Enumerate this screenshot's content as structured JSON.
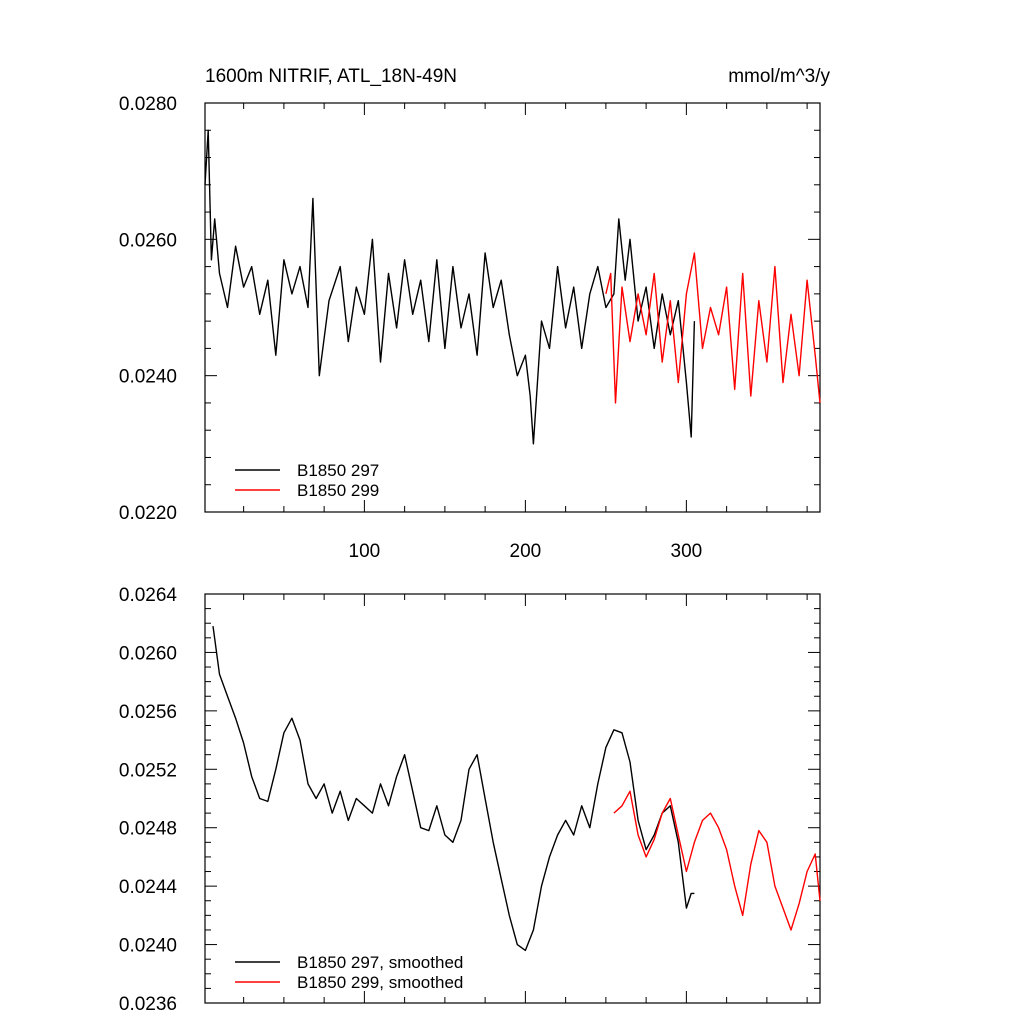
{
  "figure": {
    "left_title": "1600m NITRIF, ATL_18N-49N",
    "right_title": "mmol/m^3/y"
  },
  "chart_data": [
    {
      "type": "line",
      "title": "1600m NITRIF, ATL_18N-49N",
      "units": "mmol/m^3/y",
      "xlim": [
        1,
        383
      ],
      "ylim": [
        0.022,
        0.028
      ],
      "x_ticks": [
        100,
        200,
        300
      ],
      "x_tick_labels": [
        "100",
        "200",
        "300"
      ],
      "y_ticks": [
        0.022,
        0.024,
        0.026,
        0.028
      ],
      "y_tick_labels": [
        "0.0220",
        "0.0240",
        "0.0260",
        "0.0280"
      ],
      "legend_position": "lower-left",
      "series": [
        {
          "name": "B1850 297",
          "color": "#000000",
          "x": [
            1,
            3,
            5,
            7,
            10,
            15,
            20,
            25,
            30,
            35,
            40,
            45,
            50,
            55,
            60,
            65,
            68,
            72,
            78,
            85,
            90,
            95,
            100,
            105,
            110,
            115,
            120,
            125,
            130,
            135,
            140,
            145,
            150,
            155,
            160,
            165,
            170,
            175,
            180,
            185,
            190,
            195,
            200,
            203,
            205,
            210,
            215,
            220,
            225,
            230,
            235,
            240,
            245,
            250,
            255,
            258,
            262,
            265,
            270,
            275,
            280,
            285,
            290,
            295,
            300,
            303,
            305
          ],
          "y": [
            0.0268,
            0.0276,
            0.0257,
            0.0263,
            0.0255,
            0.025,
            0.0259,
            0.0253,
            0.0256,
            0.0249,
            0.0254,
            0.0243,
            0.0257,
            0.0252,
            0.0256,
            0.025,
            0.0266,
            0.024,
            0.0251,
            0.0256,
            0.0245,
            0.0253,
            0.0249,
            0.026,
            0.0242,
            0.0255,
            0.0247,
            0.0257,
            0.0249,
            0.0254,
            0.0245,
            0.0257,
            0.0244,
            0.0256,
            0.0247,
            0.0252,
            0.0243,
            0.0258,
            0.025,
            0.0254,
            0.0246,
            0.024,
            0.0243,
            0.0237,
            0.023,
            0.0248,
            0.0244,
            0.0256,
            0.0247,
            0.0253,
            0.0244,
            0.0252,
            0.0256,
            0.025,
            0.0252,
            0.0263,
            0.0254,
            0.026,
            0.0248,
            0.0253,
            0.0244,
            0.0252,
            0.0246,
            0.0251,
            0.0239,
            0.0231,
            0.0248
          ]
        },
        {
          "name": "B1850 299",
          "color": "#ff0000",
          "x": [
            250,
            253,
            256,
            260,
            265,
            270,
            275,
            280,
            285,
            290,
            295,
            300,
            305,
            310,
            315,
            320,
            325,
            330,
            335,
            340,
            345,
            350,
            355,
            360,
            365,
            370,
            375,
            380,
            383
          ],
          "y": [
            0.0252,
            0.0255,
            0.0236,
            0.0253,
            0.0245,
            0.0252,
            0.0246,
            0.0255,
            0.0242,
            0.0251,
            0.0239,
            0.0252,
            0.0258,
            0.0244,
            0.025,
            0.0246,
            0.0253,
            0.0238,
            0.0255,
            0.0237,
            0.0251,
            0.0242,
            0.0256,
            0.0239,
            0.0249,
            0.024,
            0.0254,
            0.0243,
            0.0236
          ]
        }
      ]
    },
    {
      "type": "line",
      "xlim": [
        1,
        383
      ],
      "ylim": [
        0.0236,
        0.0264
      ],
      "x_ticks": [
        100,
        200,
        300
      ],
      "y_ticks": [
        0.0236,
        0.024,
        0.0244,
        0.0248,
        0.0252,
        0.0256,
        0.026,
        0.0264
      ],
      "y_tick_labels": [
        "0.0236",
        "0.0240",
        "0.0244",
        "0.0248",
        "0.0252",
        "0.0256",
        "0.0260",
        "0.0264"
      ],
      "legend_position": "lower-left",
      "series": [
        {
          "name": "B1850 297, smoothed",
          "color": "#000000",
          "x": [
            6,
            10,
            15,
            20,
            25,
            30,
            35,
            40,
            45,
            50,
            55,
            60,
            65,
            70,
            75,
            80,
            85,
            90,
            95,
            100,
            105,
            110,
            115,
            120,
            125,
            130,
            135,
            140,
            145,
            150,
            155,
            160,
            165,
            170,
            175,
            180,
            185,
            190,
            195,
            200,
            205,
            210,
            215,
            220,
            225,
            230,
            235,
            240,
            245,
            250,
            255,
            260,
            265,
            270,
            275,
            280,
            285,
            290,
            295,
            300,
            303,
            305
          ],
          "y": [
            0.02618,
            0.02585,
            0.0257,
            0.02555,
            0.02538,
            0.02515,
            0.025,
            0.02498,
            0.0252,
            0.02545,
            0.02555,
            0.0254,
            0.0251,
            0.025,
            0.0251,
            0.0249,
            0.02505,
            0.02485,
            0.025,
            0.02495,
            0.0249,
            0.0251,
            0.02495,
            0.02515,
            0.0253,
            0.02505,
            0.0248,
            0.02478,
            0.02495,
            0.02475,
            0.0247,
            0.02485,
            0.0252,
            0.0253,
            0.025,
            0.0247,
            0.02445,
            0.0242,
            0.024,
            0.02396,
            0.0241,
            0.0244,
            0.0246,
            0.02475,
            0.02485,
            0.02475,
            0.02495,
            0.0248,
            0.0251,
            0.02535,
            0.02547,
            0.02545,
            0.02525,
            0.02485,
            0.02465,
            0.02475,
            0.0249,
            0.02495,
            0.0247,
            0.02425,
            0.02435,
            0.02435
          ]
        },
        {
          "name": "B1850 299, smoothed",
          "color": "#ff0000",
          "x": [
            255,
            260,
            265,
            270,
            275,
            280,
            285,
            290,
            295,
            300,
            305,
            310,
            315,
            320,
            325,
            330,
            335,
            340,
            345,
            350,
            355,
            360,
            365,
            370,
            375,
            380,
            383
          ],
          "y": [
            0.0249,
            0.02495,
            0.02505,
            0.02475,
            0.0246,
            0.02472,
            0.0249,
            0.025,
            0.02475,
            0.0245,
            0.0247,
            0.02485,
            0.0249,
            0.0248,
            0.02465,
            0.0244,
            0.0242,
            0.02455,
            0.02478,
            0.0247,
            0.0244,
            0.02425,
            0.0241,
            0.02428,
            0.0245,
            0.02462,
            0.0243
          ]
        }
      ]
    }
  ]
}
